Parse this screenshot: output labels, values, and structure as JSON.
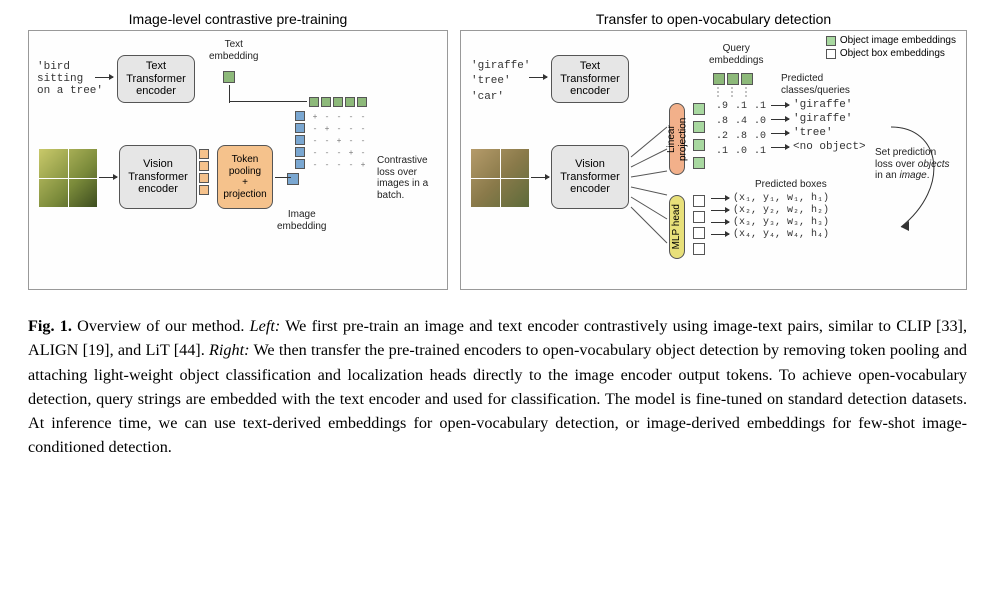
{
  "figure": {
    "left_panel": {
      "title": "Image-level contrastive pre-training",
      "input_text": "'bird\nsitting\non a tree'",
      "text_encoder_label": "Text\nTransformer\nencoder",
      "vision_encoder_label": "Vision\nTransformer\nencoder",
      "token_pool_label": "Token\npooling\n+\nprojection",
      "text_embedding_label": "Text\nembedding",
      "image_embedding_label": "Image\nembedding",
      "contrastive_label": "Contrastive\nloss over\nimages in a\nbatch.",
      "encoder_color": "#e6e6e6",
      "pool_color": "#f5c28c",
      "matrix_symbols": [
        "+",
        "-",
        "-",
        "-",
        "-",
        "-",
        "+",
        "-",
        "-",
        "-",
        "-",
        "-",
        "+",
        "-",
        "-",
        "-",
        "-",
        "-",
        "+",
        "-",
        "-",
        "-",
        "-",
        "-",
        "+"
      ],
      "text_emb_color": "#8db97a",
      "img_emb_color": "#7aa7d1"
    },
    "right_panel": {
      "title": "Transfer to open-vocabulary detection",
      "queries": [
        "'giraffe'",
        "'tree'",
        "'car'"
      ],
      "text_encoder_label": "Text\nTransformer\nencoder",
      "vision_encoder_label": "Vision\nTransformer\nencoder",
      "linear_proj_label": "Linear projection",
      "mlp_head_label": "MLP head",
      "query_emb_label": "Query\nembeddings",
      "pred_classes_label": "Predicted\nclasses/queries",
      "pred_boxes_label": "Predicted boxes",
      "set_pred_label": "Set prediction\nloss over objects\nin an image.",
      "legend_img": "Object image embeddings",
      "legend_box": "Object box embeddings",
      "scores": [
        [
          ".9",
          ".1",
          ".1"
        ],
        [
          ".8",
          ".4",
          ".0"
        ],
        [
          ".2",
          ".8",
          ".0"
        ],
        [
          ".1",
          ".0",
          ".1"
        ]
      ],
      "pred_labels": [
        "'giraffe'",
        "'giraffe'",
        "'tree'",
        "<no object>"
      ],
      "pred_box_tpl": [
        "(x₁, y₁, w₁, h₁)",
        "(x₂, y₂, w₂, h₂)",
        "(x₃, y₃, w₃, h₃)",
        "(x₄, y₄, w₄, h₄)"
      ],
      "proj_color": "#f2b08a",
      "mlp_color": "#e8e07a",
      "query_emb_color": "#8db97a",
      "obj_img_emb_color": "#a8d8a0",
      "obj_box_emb_color": "#ffffff"
    }
  },
  "caption": {
    "lead": "Fig. 1.",
    "intro": "Overview of our method. ",
    "left_lbl": "Left:",
    "left_txt": " We first pre-train an image and text encoder contrastively using image-text pairs, similar to CLIP [33], ALIGN [19], and LiT [44]. ",
    "right_lbl": "Right:",
    "right_txt": " We then transfer the pre-trained encoders to open-vocabulary object detection by removing token pooling and attaching light-weight object classification and localization heads directly to the image encoder output tokens. To achieve open-vocabulary detection, query strings are embedded with the text encoder and used for classification. The model is fine-tuned on standard detection datasets. At inference time, we can use text-derived embeddings for open-vocabulary detection, or image-derived embeddings for few-shot image-conditioned detection."
  }
}
